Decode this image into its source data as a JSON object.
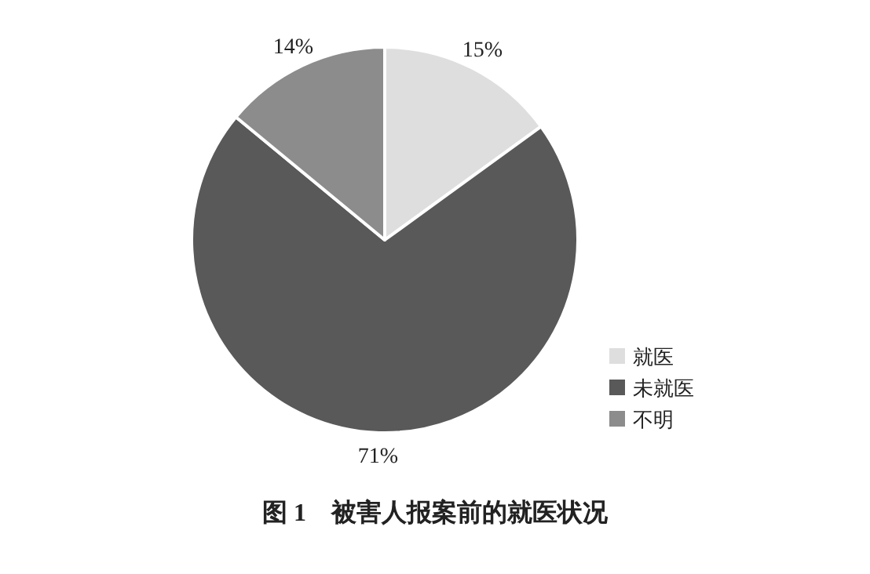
{
  "chart_data": {
    "type": "pie",
    "title": "图 1　被害人报案前的就医状况",
    "categories": [
      "就医",
      "未就医",
      "不明"
    ],
    "values": [
      15,
      71,
      14
    ],
    "colors": [
      "#dedede",
      "#595959",
      "#8c8c8c"
    ],
    "value_labels": [
      "15%",
      "71%",
      "14%"
    ],
    "legend": "bottom right"
  }
}
